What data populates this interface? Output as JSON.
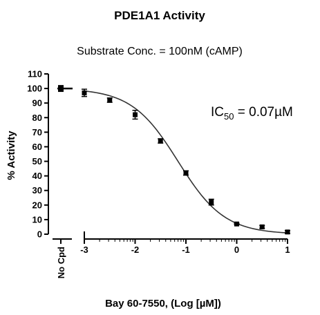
{
  "chart_data": {
    "type": "scatter",
    "title": "PDE1A1 Activity",
    "subtitle": "Substrate Conc. = 100nM (cAMP)",
    "xlabel": "Bay 60-7550, (Log [µM])",
    "ylabel": "% Activity",
    "xlim": [
      -3,
      1
    ],
    "ylim": [
      0,
      110
    ],
    "x_ticks": [
      "-3",
      "-2",
      "-1",
      "0",
      "1"
    ],
    "y_ticks": [
      "0",
      "10",
      "20",
      "30",
      "40",
      "50",
      "60",
      "70",
      "80",
      "90",
      "100",
      "110"
    ],
    "control_label": "No Cpd",
    "control_value": 100,
    "control_error": 2,
    "x": [
      -3,
      -2.5,
      -2,
      -1.5,
      -1,
      -0.5,
      0,
      0.5,
      1
    ],
    "y": [
      97,
      92,
      82,
      64,
      42,
      22,
      7,
      5,
      1.5
    ],
    "errors": [
      2.5,
      1.5,
      3,
      1.5,
      1.5,
      2,
      0.5,
      1,
      1
    ],
    "fit": {
      "top": 100,
      "bottom": 0,
      "log_ic50": -1.155,
      "hill": -0.95
    },
    "annotation": {
      "main": "IC",
      "sub": "50",
      "rest": " = 0.07µM"
    },
    "colors": {
      "points": "#000000",
      "fit_line": "#333333",
      "axes": "#000000"
    }
  }
}
